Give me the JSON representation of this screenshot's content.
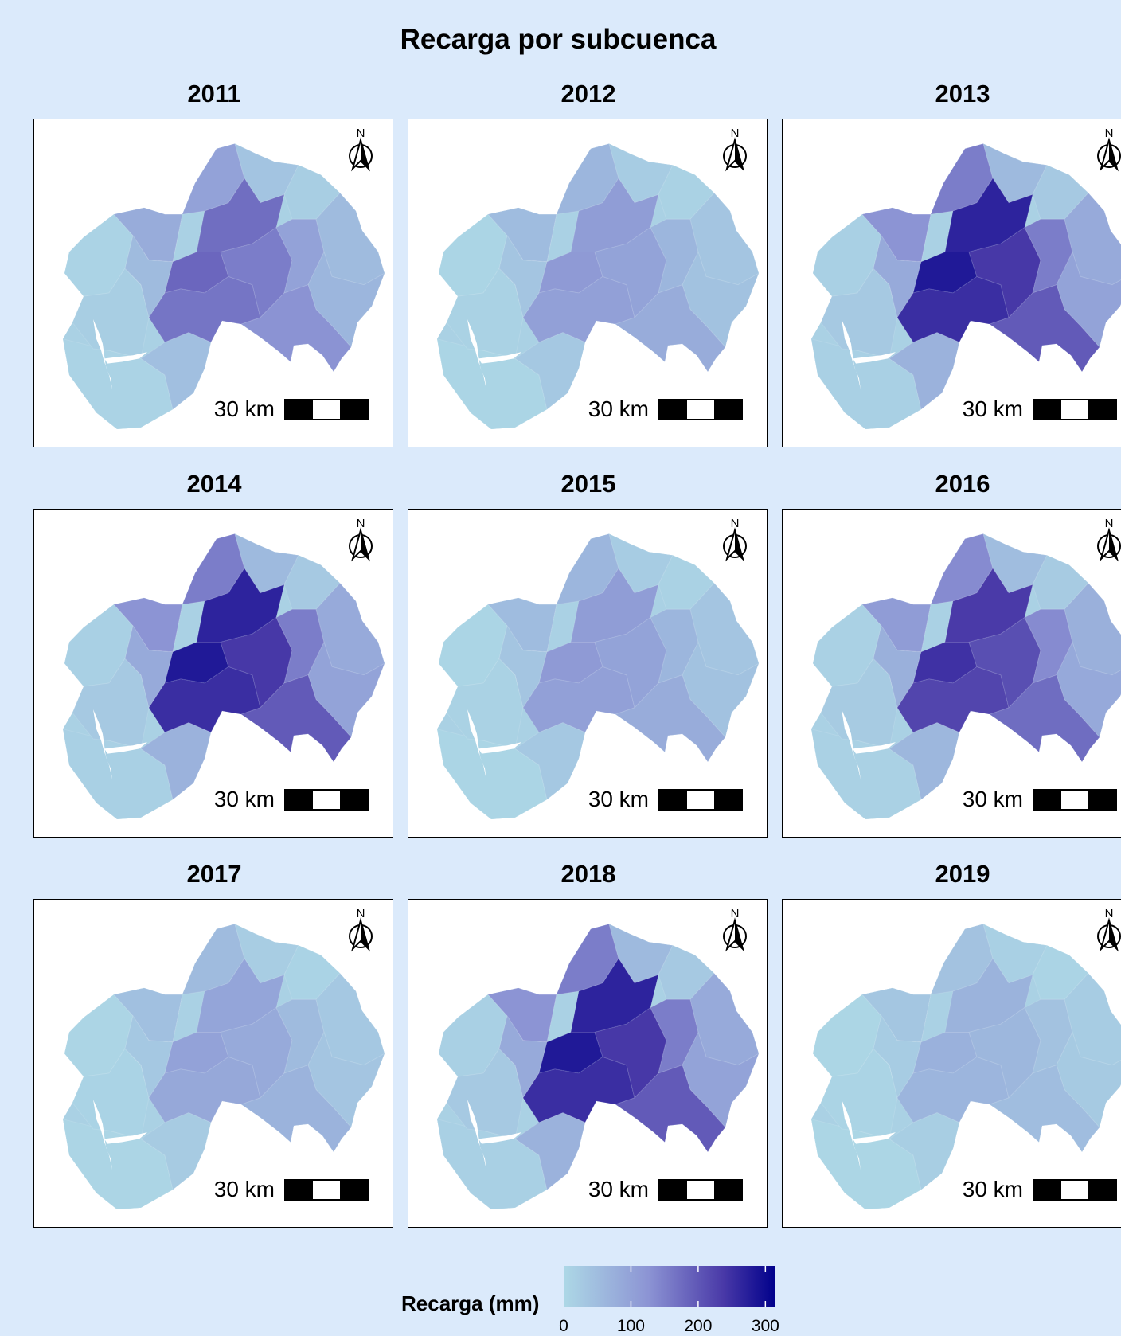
{
  "title": "Recarga por subcuenca",
  "colors": {
    "background": "#dbeafb",
    "scale_low": "#add8e6",
    "scale_mid": "#7b7fcc",
    "scale_high": "#00008b"
  },
  "panels": [
    {
      "year": "2011",
      "scale_label": "30 km",
      "north_label": "N",
      "level": 0.55
    },
    {
      "year": "2012",
      "scale_label": "30 km",
      "north_label": "N",
      "level": 0.35
    },
    {
      "year": "2013",
      "scale_label": "30 km",
      "north_label": "N",
      "level": 0.85
    },
    {
      "year": "2014",
      "scale_label": "30 km",
      "north_label": "N",
      "level": 0.85
    },
    {
      "year": "2015",
      "scale_label": "30 km",
      "north_label": "N",
      "level": 0.35
    },
    {
      "year": "2016",
      "scale_label": "30 km",
      "north_label": "N",
      "level": 0.75
    },
    {
      "year": "2017",
      "scale_label": "30 km",
      "north_label": "N",
      "level": 0.3
    },
    {
      "year": "2018",
      "scale_label": "30 km",
      "north_label": "N",
      "level": 0.85
    },
    {
      "year": "2019",
      "scale_label": "30 km",
      "north_label": "N",
      "level": 0.22
    }
  ],
  "legend": {
    "title": "Recarga (mm)",
    "ticks": [
      "0",
      "100",
      "200",
      "300"
    ],
    "tick_values": [
      0,
      100,
      200,
      300
    ],
    "min": 0,
    "max": 315
  }
}
